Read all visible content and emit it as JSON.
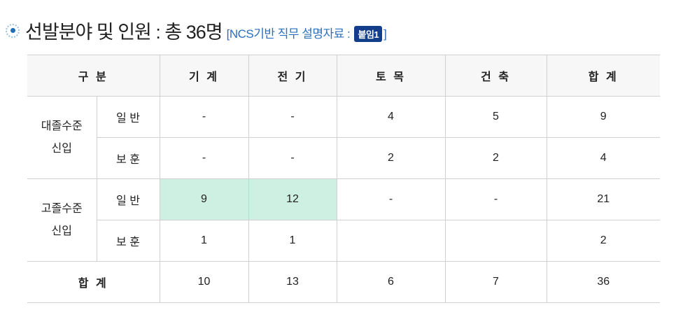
{
  "title": {
    "main": "선발분야 및 인원 : 총 36명",
    "sub_prefix": "[NCS기반 직무 설명자료 :",
    "badge": "붙임1",
    "sub_suffix": "]"
  },
  "table": {
    "headers": [
      "구 분",
      "기 계",
      "전 기",
      "토 목",
      "건 축",
      "합 계"
    ],
    "groups": [
      {
        "label1": "대졸수준",
        "label2": "신입",
        "rows": [
          {
            "type": "일 반",
            "values": [
              "-",
              "-",
              "4",
              "5",
              "9"
            ]
          },
          {
            "type": "보 훈",
            "values": [
              "-",
              "-",
              "2",
              "2",
              "4"
            ]
          }
        ]
      },
      {
        "label1": "고졸수준",
        "label2": "신입",
        "rows": [
          {
            "type": "일 반",
            "values": [
              "9",
              "12",
              "-",
              "-",
              "21"
            ]
          },
          {
            "type": "보 훈",
            "values": [
              "1",
              "1",
              "",
              "",
              "2"
            ]
          }
        ]
      }
    ],
    "total": {
      "label": "합 계",
      "values": [
        "10",
        "13",
        "6",
        "7",
        "36"
      ]
    },
    "highlight_color": "#cdf0e2"
  }
}
